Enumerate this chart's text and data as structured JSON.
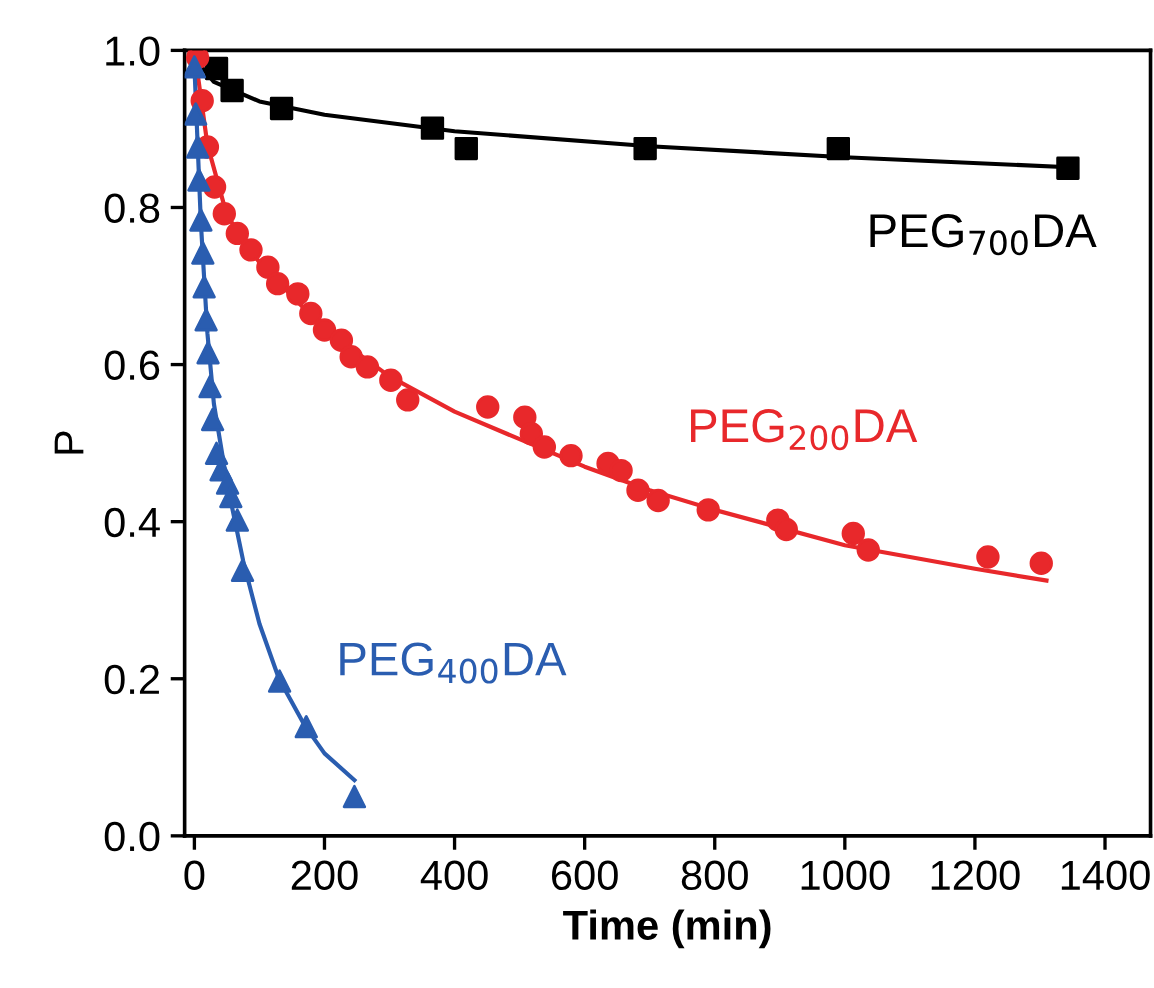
{
  "chart_data": {
    "type": "scatter",
    "xlabel": "Time (min)",
    "ylabel": "P",
    "xlim": [
      -15,
      1470
    ],
    "ylim": [
      0,
      1.0
    ],
    "xticks": [
      0,
      200,
      400,
      600,
      800,
      1000,
      1200,
      1400
    ],
    "yticks": [
      {
        "value": 0,
        "label": "0.0"
      },
      {
        "value": 0.2,
        "label": "0.2"
      },
      {
        "value": 0.4,
        "label": "0.4"
      },
      {
        "value": 0.6,
        "label": "0.6"
      },
      {
        "value": 0.8,
        "label": "0.8"
      },
      {
        "value": 1.0,
        "label": "1.0"
      }
    ],
    "grid": false,
    "legend": false,
    "series": [
      {
        "name": "PEG$_{700}$DA",
        "marker": "square",
        "color": "#000000",
        "x": [
          34,
          58,
          134,
          366,
          418,
          693,
          990,
          1343
        ],
        "values": [
          0.977,
          0.949,
          0.926,
          0.901,
          0.875,
          0.875,
          0.875,
          0.85
        ]
      },
      {
        "name": "PEG$_{200}$DA",
        "marker": "circle",
        "color": "#e8282b",
        "x": [
          5,
          12,
          20,
          31,
          46,
          66,
          87,
          113,
          128,
          159,
          179,
          200,
          226,
          241,
          266,
          302,
          328,
          451,
          508,
          518,
          538,
          579,
          636,
          656,
          682,
          713,
          790,
          897,
          910,
          1013,
          1036,
          1220,
          1302
        ],
        "values": [
          0.991,
          0.936,
          0.877,
          0.826,
          0.792,
          0.767,
          0.746,
          0.724,
          0.703,
          0.69,
          0.665,
          0.644,
          0.631,
          0.61,
          0.597,
          0.58,
          0.555,
          0.546,
          0.533,
          0.512,
          0.495,
          0.484,
          0.474,
          0.465,
          0.44,
          0.427,
          0.415,
          0.402,
          0.39,
          0.385,
          0.364,
          0.355,
          0.347
        ]
      },
      {
        "name": "PEG$_{400}$DA",
        "marker": "triangle",
        "color": "#2a5db0",
        "x": [
          0,
          2,
          5,
          7,
          10,
          13,
          15,
          18,
          21,
          24,
          28,
          34,
          41,
          51,
          56,
          66,
          74,
          131,
          172,
          246
        ],
        "values": [
          0.979,
          0.919,
          0.877,
          0.835,
          0.784,
          0.742,
          0.699,
          0.657,
          0.615,
          0.572,
          0.53,
          0.487,
          0.466,
          0.449,
          0.432,
          0.402,
          0.338,
          0.197,
          0.139,
          0.05
        ]
      },
      {
        "type": "line",
        "color": "#000000",
        "x": [
          0,
          30,
          100,
          200,
          400,
          700,
          1000,
          1350
        ],
        "values": [
          0.99,
          0.96,
          0.935,
          0.918,
          0.897,
          0.878,
          0.864,
          0.851
        ]
      },
      {
        "type": "line",
        "color": "#e8282b",
        "x": [
          0,
          20,
          50,
          100,
          200,
          300,
          400,
          500,
          600,
          700,
          800,
          1000,
          1200,
          1310
        ],
        "values": [
          1.0,
          0.88,
          0.79,
          0.73,
          0.645,
          0.585,
          0.54,
          0.505,
          0.47,
          0.44,
          0.415,
          0.37,
          0.34,
          0.325
        ]
      },
      {
        "type": "line",
        "color": "#2a5db0",
        "x": [
          0,
          10,
          20,
          30,
          50,
          75,
          100,
          130,
          170,
          200,
          246
        ],
        "values": [
          0.98,
          0.78,
          0.64,
          0.55,
          0.45,
          0.35,
          0.27,
          0.2,
          0.14,
          0.105,
          0.071
        ]
      }
    ]
  }
}
